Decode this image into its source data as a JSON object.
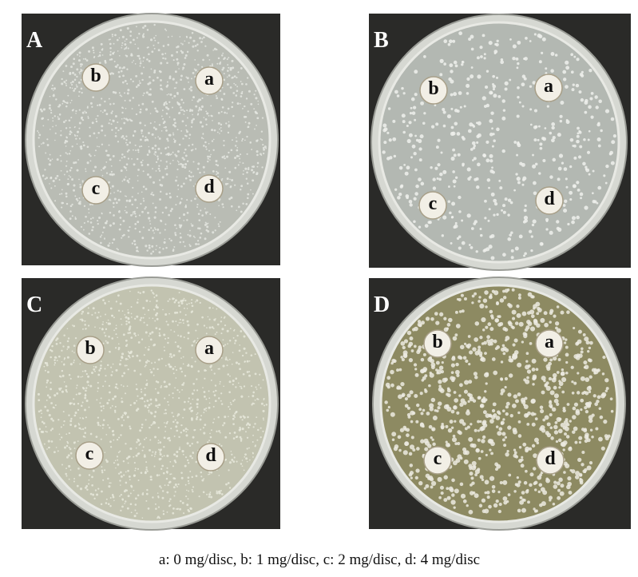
{
  "panels": [
    {
      "label": "A",
      "discs": [
        "b",
        "a",
        "c",
        "d"
      ]
    },
    {
      "label": "B",
      "discs": [
        "b",
        "a",
        "c",
        "d"
      ]
    },
    {
      "label": "C",
      "discs": [
        "b",
        "a",
        "c",
        "d"
      ]
    },
    {
      "label": "D",
      "discs": [
        "b",
        "a",
        "c",
        "d"
      ]
    }
  ],
  "caption": "a: 0 mg/disc, b: 1 mg/disc, c: 2 mg/disc, d: 4 mg/disc"
}
